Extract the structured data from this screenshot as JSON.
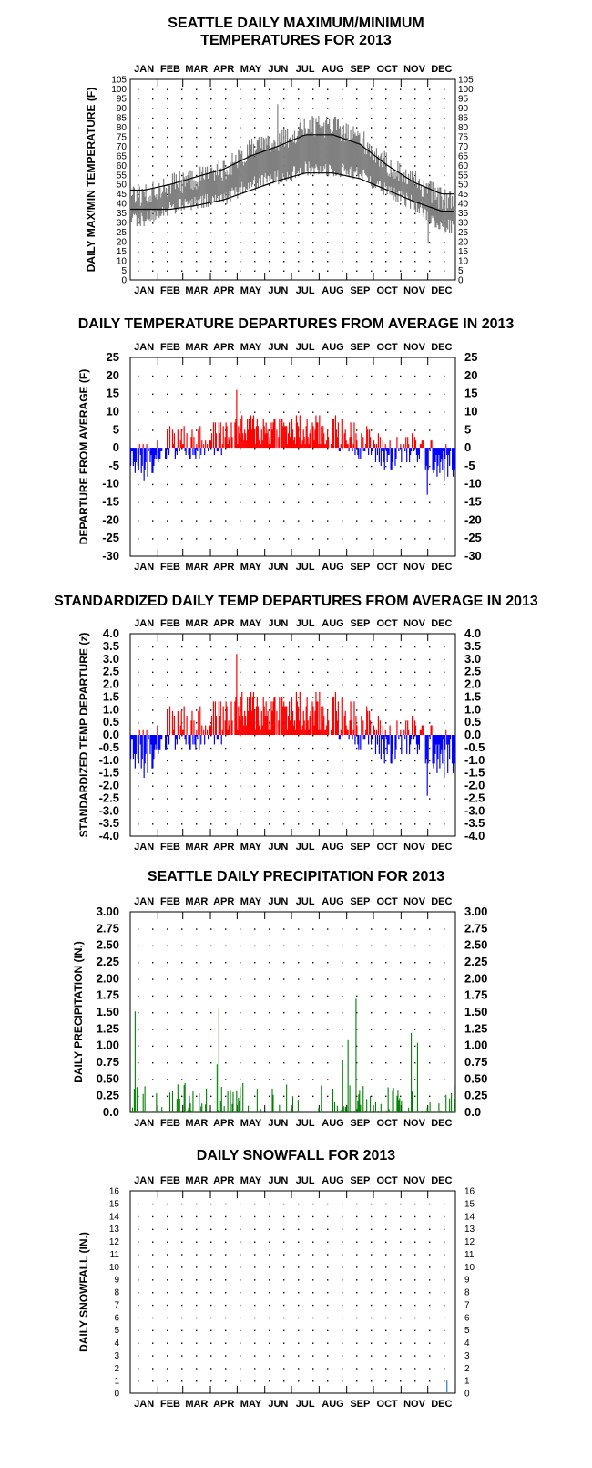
{
  "months": [
    "JAN",
    "FEB",
    "MAR",
    "APR",
    "MAY",
    "JUN",
    "JUL",
    "AUG",
    "SEP",
    "OCT",
    "NOV",
    "DEC"
  ],
  "colors": {
    "range_bar": "#808080",
    "normal_line": "#000000",
    "above_avg": "#ff0000",
    "below_avg": "#0000ff",
    "precip": "#008000",
    "snow": "#4a90c8"
  },
  "chart_data": [
    {
      "type": "bar",
      "title": "SEATTLE DAILY MAXIMUM/MINIMUM\nTEMPERATURES FOR 2013",
      "ylabel": "DAILY MAX/MIN TEMPERATURE (F)",
      "ylim": [
        0,
        105
      ],
      "yticks": [
        0,
        5,
        10,
        15,
        20,
        25,
        30,
        35,
        40,
        45,
        50,
        55,
        60,
        65,
        70,
        75,
        80,
        85,
        90,
        95,
        100,
        105
      ],
      "grid": true,
      "monthly_pattern": {
        "months": [
          "Jan",
          "Feb",
          "Mar",
          "Apr",
          "May",
          "Jun",
          "Jul",
          "Aug",
          "Sep",
          "Oct",
          "Nov",
          "Dec"
        ],
        "max_f": [
          44,
          50,
          53,
          58,
          68,
          72,
          80,
          80,
          74,
          60,
          52,
          42
        ],
        "min_f": [
          32,
          38,
          40,
          43,
          50,
          54,
          58,
          58,
          56,
          46,
          40,
          28
        ]
      },
      "series": [
        {
          "name": "",
          "values_note": "daily max/min range bars"
        },
        {
          "name": "",
          "normal_max_monthly": [
            47,
            50,
            54,
            58,
            65,
            70,
            76,
            76,
            71,
            60,
            51,
            45
          ]
        },
        {
          "name": "",
          "normal_min_monthly": [
            37,
            37,
            39,
            42,
            47,
            52,
            56,
            56,
            53,
            47,
            41,
            36
          ]
        }
      ],
      "peaks": {
        "max": 92,
        "min": 19
      }
    },
    {
      "type": "bar",
      "title": "DAILY TEMPERATURE DEPARTURES FROM AVERAGE IN 2013",
      "ylabel": "DEPARTURE FROM AVERAGE (F)",
      "ylim": [
        -30,
        25
      ],
      "yticks": [
        25,
        20,
        15,
        10,
        5,
        0,
        -5,
        -10,
        -15,
        -20,
        -25,
        -30
      ],
      "grid": true,
      "monthly_mean_departure": [
        -4,
        2,
        1,
        3,
        5,
        5,
        4,
        4,
        2,
        -2,
        0,
        -4
      ],
      "extremes": {
        "max": 16,
        "min": -13
      }
    },
    {
      "type": "bar",
      "title": "STANDARDIZED DAILY TEMP DEPARTURES FROM AVERAGE IN 2013",
      "ylabel": "STANDARDIZED TEMP DEPARTURE (z)",
      "ylim": [
        -4.0,
        4.0
      ],
      "yticks": [
        "4.0",
        "3.5",
        "3.0",
        "2.5",
        "2.0",
        "1.5",
        "1.0",
        "0.5",
        "0.0",
        "-0.5",
        "-1.0",
        "-1.5",
        "-2.0",
        "-2.5",
        "-3.0",
        "-3.5",
        "-4.0"
      ],
      "grid": true,
      "extremes": {
        "max": 3.2,
        "min": -2.4
      }
    },
    {
      "type": "bar",
      "title": "SEATTLE DAILY PRECIPITATION FOR 2013",
      "ylabel": "DAILY PRECIPITATION (IN.)",
      "ylim": [
        0,
        3.0
      ],
      "yticks": [
        "3.00",
        "2.75",
        "2.50",
        "2.25",
        "2.00",
        "1.75",
        "1.50",
        "1.25",
        "1.00",
        "0.75",
        "0.50",
        "0.25",
        "0.0"
      ],
      "grid": true,
      "notable_days": [
        {
          "day": 5,
          "value": 1.51
        },
        {
          "day": 99,
          "value": 1.55
        },
        {
          "day": 97,
          "value": 0.72
        },
        {
          "day": 253,
          "value": 1.7
        },
        {
          "day": 244,
          "value": 1.08
        },
        {
          "day": 238,
          "value": 0.78
        },
        {
          "day": 315,
          "value": 1.19
        },
        {
          "day": 322,
          "value": 1.04
        },
        {
          "day": 363,
          "value": 0.4
        }
      ]
    },
    {
      "type": "bar",
      "title": "DAILY SNOWFALL FOR 2013",
      "ylabel": "DAILY SNOWFALL (IN.)",
      "ylim": [
        0,
        16
      ],
      "yticks": [
        16,
        15,
        14,
        13,
        12,
        11,
        10,
        9,
        8,
        7,
        6,
        5,
        4,
        3,
        2,
        1,
        0
      ],
      "grid": true,
      "notable_days": [
        {
          "day": 355,
          "value": 1.0
        }
      ]
    }
  ]
}
